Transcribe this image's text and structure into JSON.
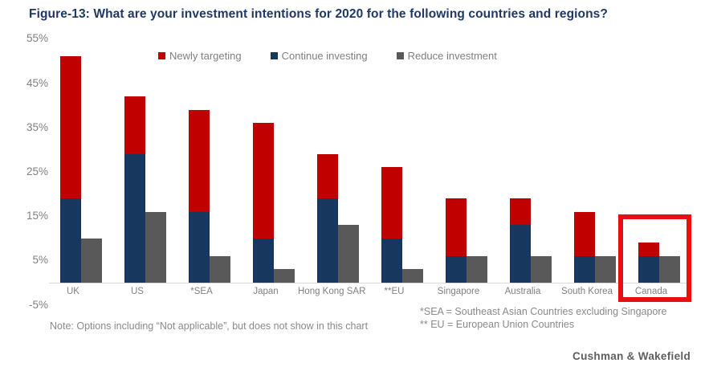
{
  "title": "Figure-13: What are your investment intentions for 2020 for the following countries and regions?",
  "attribution": "Cushman & Wakefield",
  "notes": {
    "left": "Note: Options including “Not applicable”, but does not show in this chart",
    "sea": "*SEA = Southeast Asian Countries excluding Singapore",
    "eu": "** EU = European Union Countries"
  },
  "colors": {
    "title": "#1F3864",
    "newly_targeting": "#C00000",
    "continue_investing": "#17375E",
    "reduce_investment": "#595959",
    "axis_text": "#808080",
    "note_text": "#8A8A8A",
    "axis_line": "#D9D9D9",
    "highlight": "#EC0E0E"
  },
  "highlight": {
    "category": "Canada",
    "color": "#EC0E0E"
  },
  "chart_data": {
    "type": "bar",
    "subtype": "stacked-plus-grouped",
    "title": "Figure-13: What are your investment intentions for 2020 for the following countries and regions?",
    "xlabel": "",
    "ylabel": "",
    "ylim": [
      -5,
      55
    ],
    "ytick_values": [
      55,
      45,
      35,
      25,
      15,
      5,
      -5
    ],
    "ytick_suffix": "%",
    "grid": false,
    "legend_position": "top",
    "categories": [
      "UK",
      "US",
      "*SEA",
      "Japan",
      "Hong Kong SAR",
      "**EU",
      "Singapore",
      "Australia",
      "South Korea",
      "Canada"
    ],
    "series": [
      {
        "name": "Newly targeting",
        "color": "#C00000",
        "stack": "invest",
        "values": [
          32,
          13,
          23,
          26,
          10,
          16,
          13,
          6,
          10,
          3
        ]
      },
      {
        "name": "Continue investing",
        "color": "#17375E",
        "stack": "invest",
        "values": [
          19,
          29,
          16,
          10,
          19,
          10,
          6,
          13,
          6,
          6
        ]
      },
      {
        "name": "Reduce investment",
        "color": "#595959",
        "stack": "reduce",
        "values": [
          10,
          16,
          6,
          3,
          13,
          3,
          6,
          6,
          6,
          6
        ]
      }
    ]
  }
}
